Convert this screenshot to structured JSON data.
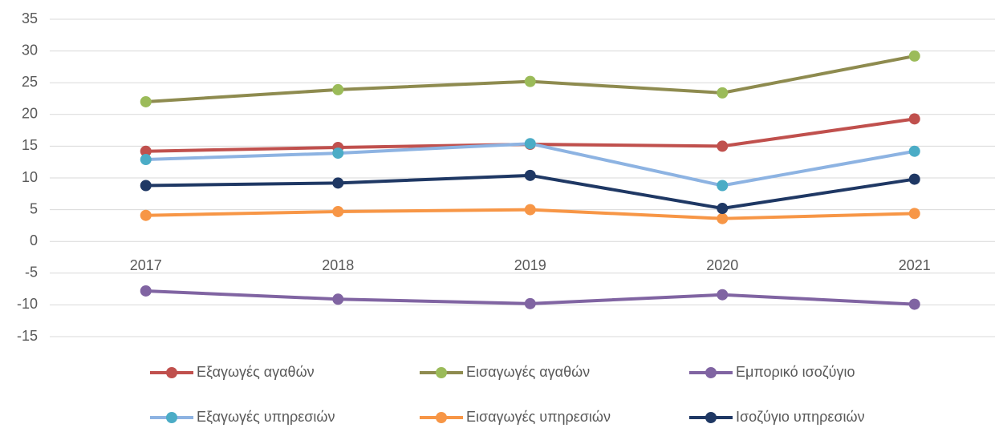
{
  "chart_data": {
    "type": "line",
    "categories": [
      "2017",
      "2018",
      "2019",
      "2020",
      "2021"
    ],
    "series": [
      {
        "name": "Εξαγωγές αγαθών",
        "color": "#c0504d",
        "marker_color": "#c0504d",
        "values": [
          14.2,
          14.8,
          15.3,
          15.0,
          19.3
        ]
      },
      {
        "name": "Εισαγωγές αγαθών",
        "color": "#8e8b4f",
        "marker_color": "#9bbb59",
        "values": [
          22.0,
          23.9,
          25.2,
          23.4,
          29.2
        ]
      },
      {
        "name": "Εμπορικό ισοζύγιο",
        "color": "#8064a2",
        "marker_color": "#8064a2",
        "values": [
          -7.8,
          -9.1,
          -9.8,
          -8.4,
          -9.9
        ]
      },
      {
        "name": "Εξαγωγές υπηρεσιών",
        "color": "#8db3e2",
        "marker_color": "#4bacc6",
        "values": [
          12.9,
          13.9,
          15.4,
          8.8,
          14.2
        ]
      },
      {
        "name": "Εισαγωγές υπηρεσιών",
        "color": "#f79646",
        "marker_color": "#f79646",
        "values": [
          4.1,
          4.7,
          5.0,
          3.6,
          4.4
        ]
      },
      {
        "name": "Ισοζύγιο υπηρεσιών",
        "color": "#1f3864",
        "marker_color": "#1f3864",
        "values": [
          8.8,
          9.2,
          10.4,
          5.2,
          9.8
        ]
      }
    ],
    "ylim": [
      -15,
      35
    ],
    "yticks": [
      -15,
      -10,
      -5,
      0,
      5,
      10,
      15,
      20,
      25,
      30,
      35
    ],
    "grid": true,
    "legend": "bottom"
  }
}
